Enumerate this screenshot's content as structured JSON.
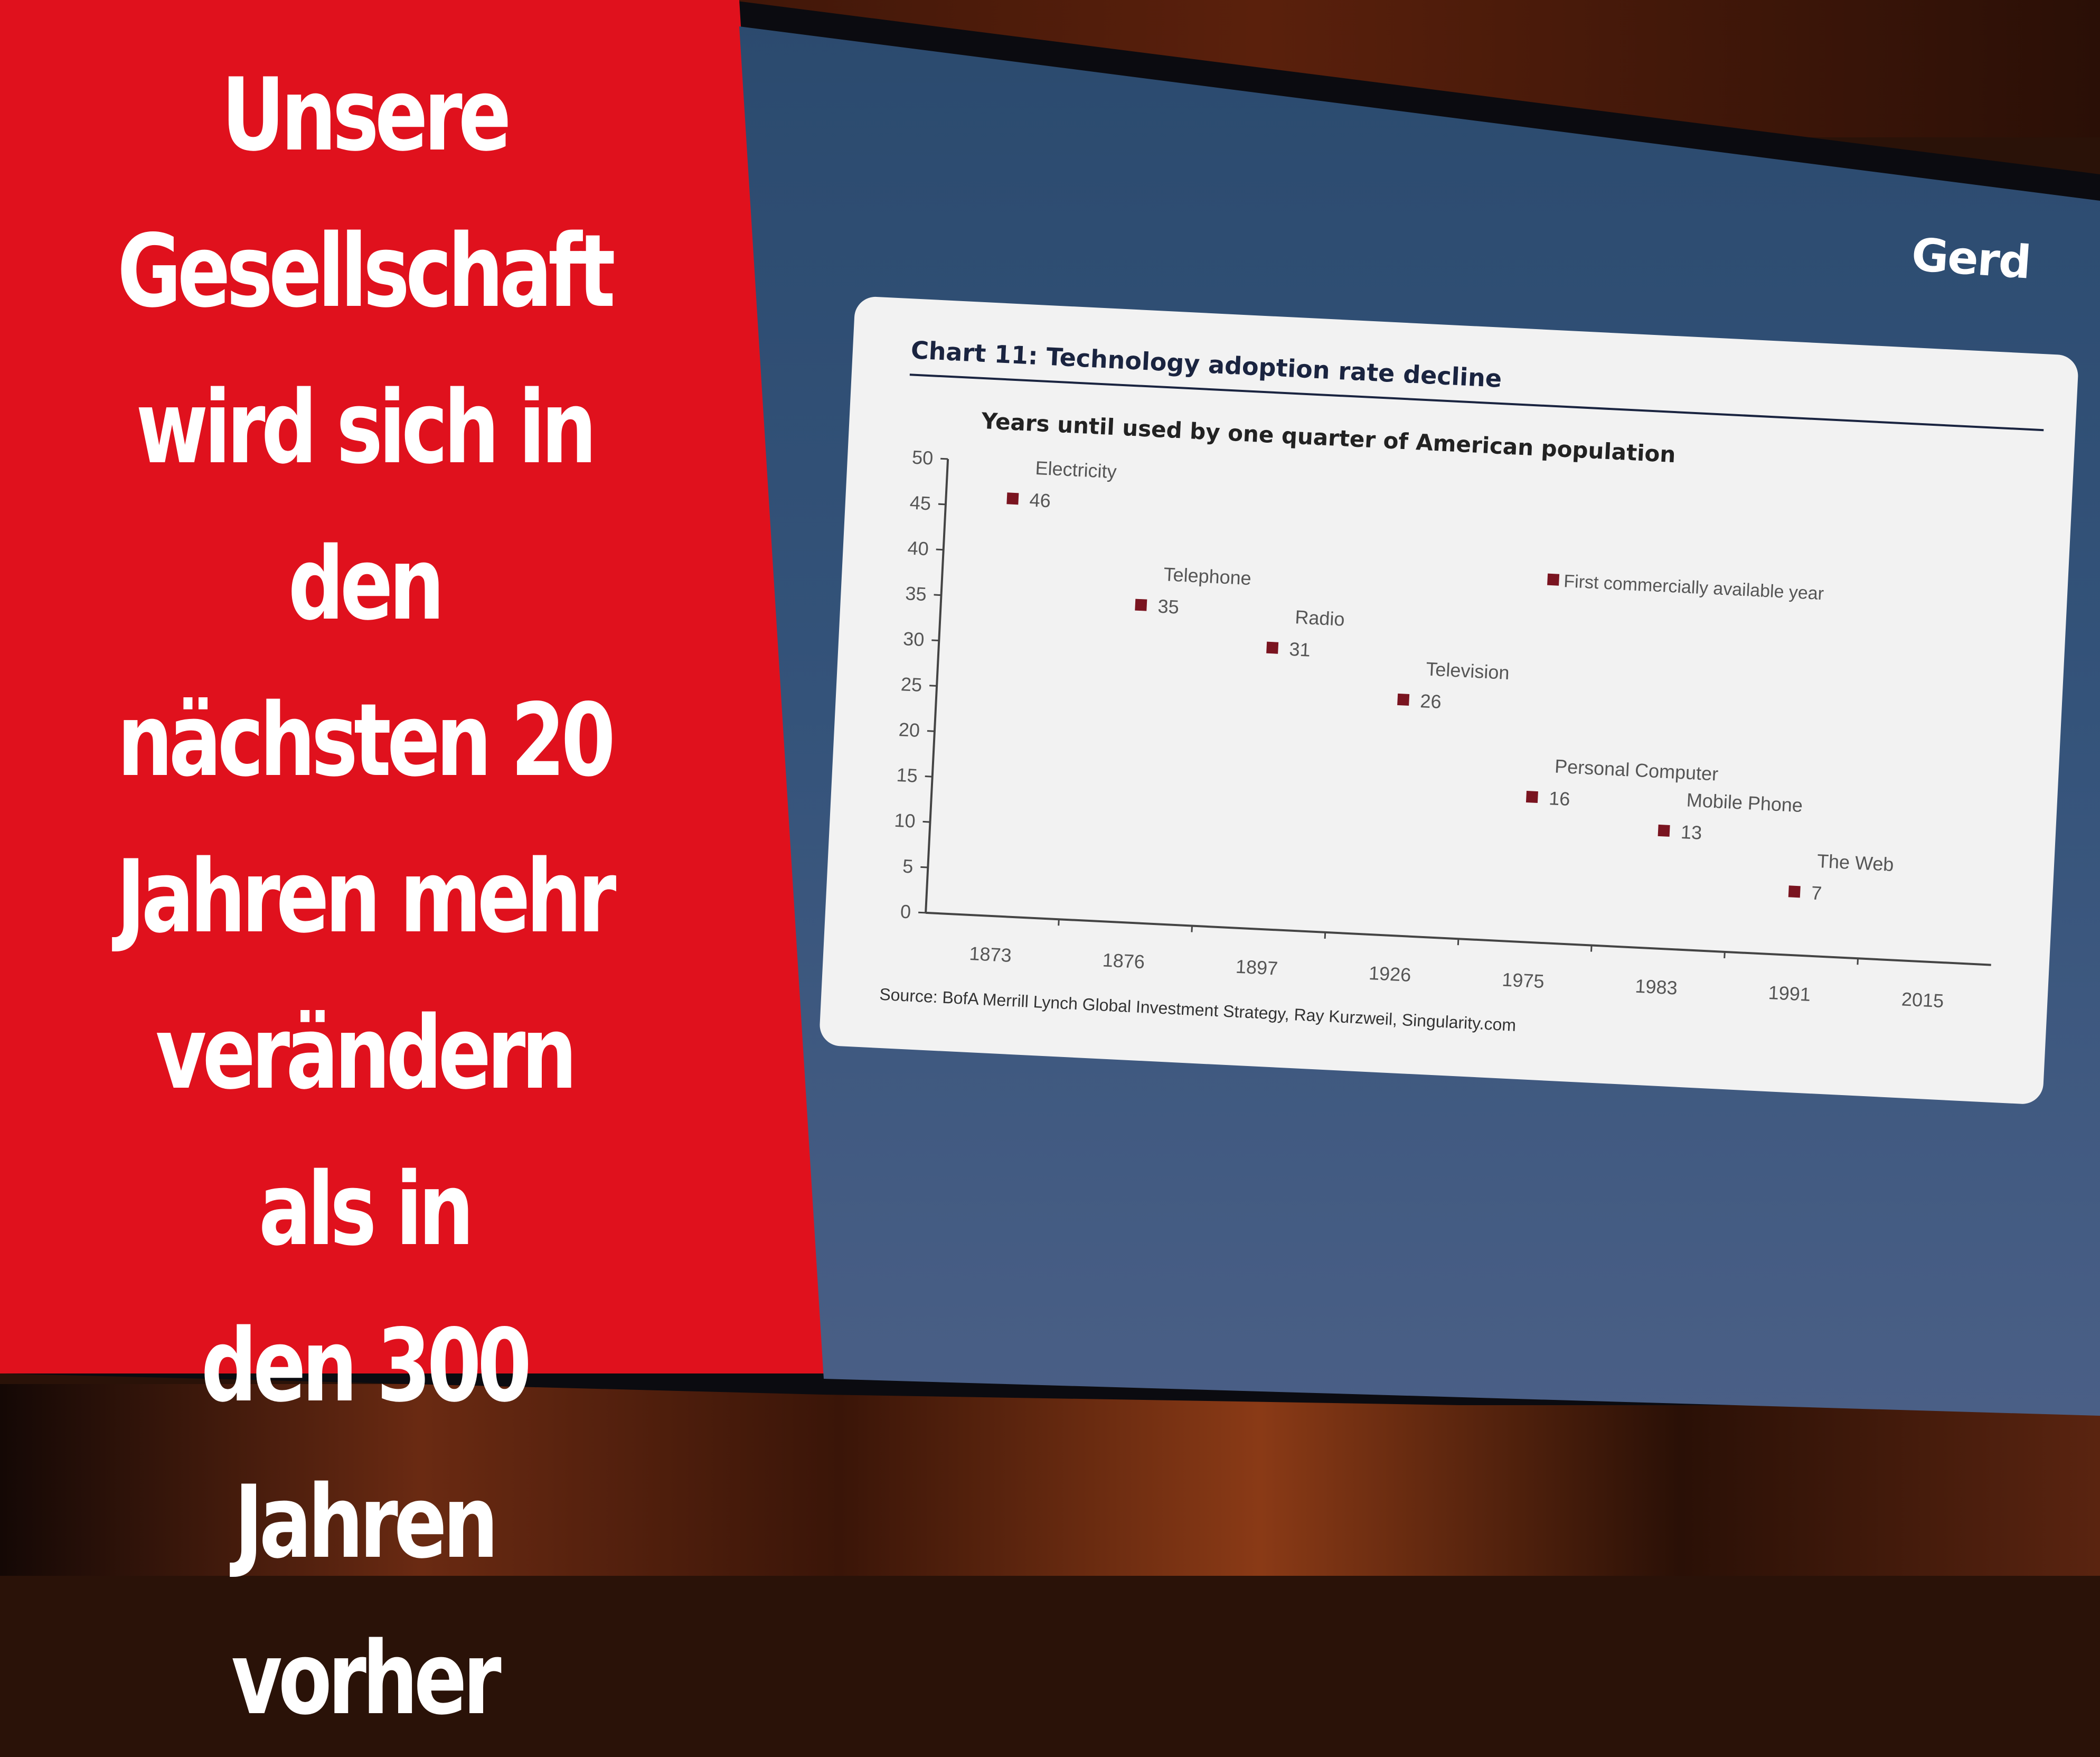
{
  "slide": {
    "headline": "Unsere\nGesellschaft\nwird sich in den\nnächsten 20\nJahren mehr\nverändern als in\nden 300 Jahren\nvorher",
    "brand": "Gerd",
    "colors": {
      "left_panel": "#e0111d",
      "right_panel": "#2b4a6e",
      "marker": "#7a1420"
    }
  },
  "chart_data": {
    "type": "scatter",
    "title": "Chart 11: Technology adoption rate decline",
    "subtitle": "Years until used by one quarter of American population",
    "source": "Source: BofA Merrill Lynch Global Investment Strategy, Ray Kurzweil, Singularity.com",
    "legend": {
      "label": "First commercially available year",
      "placement": "top-right"
    },
    "x_ticks": [
      "1873",
      "1876",
      "1897",
      "1926",
      "1975",
      "1983",
      "1991",
      "2015"
    ],
    "y_ticks": [
      "0",
      "5",
      "10",
      "15",
      "20",
      "25",
      "30",
      "35",
      "40",
      "45",
      "50"
    ],
    "ylim": [
      0,
      50
    ],
    "grid": false,
    "points": [
      {
        "name": "Electricity",
        "year": "1873",
        "value": 46
      },
      {
        "name": "Telephone",
        "year": "1876",
        "value": 35
      },
      {
        "name": "Radio",
        "year": "1897",
        "value": 31
      },
      {
        "name": "Television",
        "year": "1926",
        "value": 26
      },
      {
        "name": "Personal Computer",
        "year": "1975",
        "value": 16
      },
      {
        "name": "Mobile Phone",
        "year": "1983",
        "value": 13
      },
      {
        "name": "The Web",
        "year": "1991",
        "value": 7
      }
    ]
  }
}
